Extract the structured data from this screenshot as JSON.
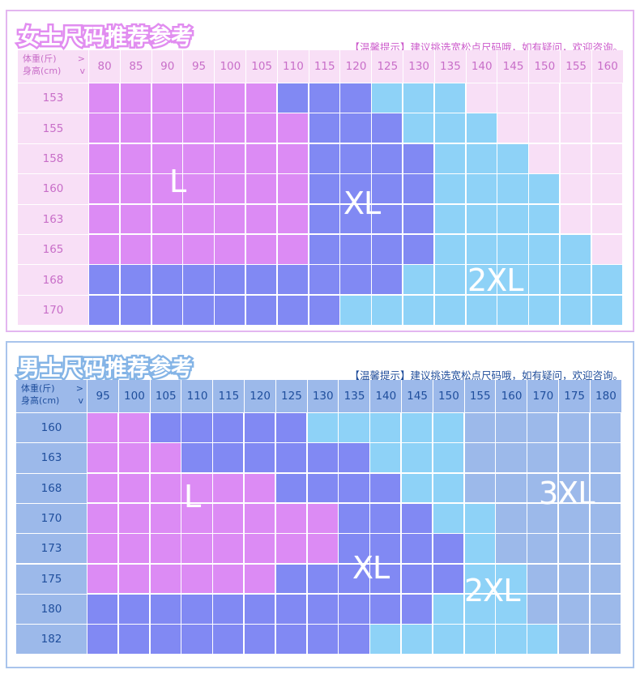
{
  "women": {
    "title": "女士尺码推荐参考",
    "tip": "【温馨提示】建议挑选宽松点尺码哦，如有疑问，欢迎咨询。",
    "corner_weight": "体重(斤)",
    "corner_weight_arrow": ">",
    "corner_height": "身高(cm)",
    "corner_height_arrow": "v",
    "weights": [
      "80",
      "85",
      "90",
      "95",
      "100",
      "105",
      "110",
      "115",
      "120",
      "125",
      "130",
      "135",
      "140",
      "145",
      "150",
      "155",
      "160"
    ],
    "heights": [
      "153",
      "155",
      "158",
      "160",
      "163",
      "165",
      "168",
      "170"
    ],
    "size_labels": [
      {
        "text": "L",
        "size": "L"
      },
      {
        "text": "XL",
        "size": "XL"
      },
      {
        "text": "2XL",
        "size": "2XL"
      }
    ],
    "grid": [
      [
        "L",
        "L",
        "L",
        "L",
        "L",
        "L",
        "XL",
        "XL",
        "XL",
        "2XL",
        "2XL",
        "2XL",
        "N",
        "N",
        "N",
        "N",
        "N"
      ],
      [
        "L",
        "L",
        "L",
        "L",
        "L",
        "L",
        "L",
        "XL",
        "XL",
        "XL",
        "2XL",
        "2XL",
        "2XL",
        "N",
        "N",
        "N",
        "N"
      ],
      [
        "L",
        "L",
        "L",
        "L",
        "L",
        "L",
        "L",
        "XL",
        "XL",
        "XL",
        "XL",
        "2XL",
        "2XL",
        "2XL",
        "N",
        "N",
        "N"
      ],
      [
        "L",
        "L",
        "L",
        "L",
        "L",
        "L",
        "L",
        "XL",
        "XL",
        "XL",
        "XL",
        "2XL",
        "2XL",
        "2XL",
        "2XL",
        "N",
        "N"
      ],
      [
        "L",
        "L",
        "L",
        "L",
        "L",
        "L",
        "L",
        "XL",
        "XL",
        "XL",
        "XL",
        "2XL",
        "2XL",
        "2XL",
        "2XL",
        "N",
        "N"
      ],
      [
        "L",
        "L",
        "L",
        "L",
        "L",
        "L",
        "L",
        "XL",
        "XL",
        "XL",
        "XL",
        "2XL",
        "2XL",
        "2XL",
        "2XL",
        "2XL",
        "N"
      ],
      [
        "XL",
        "XL",
        "XL",
        "XL",
        "XL",
        "XL",
        "XL",
        "XL",
        "XL",
        "XL",
        "2XL",
        "2XL",
        "2XL",
        "2XL",
        "2XL",
        "2XL",
        "2XL"
      ],
      [
        "XL",
        "XL",
        "XL",
        "XL",
        "XL",
        "XL",
        "XL",
        "XL",
        "2XL",
        "2XL",
        "2XL",
        "2XL",
        "2XL",
        "2XL",
        "2XL",
        "2XL",
        "2XL"
      ]
    ],
    "colors": {
      "L": "#dc8bf4",
      "XL": "#8189f3",
      "2XL": "#8ed2f7",
      "N": "#f8dff6"
    }
  },
  "men": {
    "title": "男士尺码推荐参考",
    "tip": "【温馨提示】建议挑选宽松点尺码哦，如有疑问，欢迎咨询。",
    "corner_weight": "体重(斤)",
    "corner_weight_arrow": ">",
    "corner_height": "身高(cm)",
    "corner_height_arrow": "v",
    "weights": [
      "95",
      "100",
      "105",
      "110",
      "115",
      "120",
      "125",
      "130",
      "135",
      "140",
      "145",
      "150",
      "155",
      "160",
      "170",
      "175",
      "180"
    ],
    "heights": [
      "160",
      "163",
      "168",
      "170",
      "173",
      "175",
      "180",
      "182"
    ],
    "size_labels": [
      {
        "text": "L",
        "size": "L"
      },
      {
        "text": "XL",
        "size": "XL"
      },
      {
        "text": "2XL",
        "size": "2XL"
      },
      {
        "text": "3XL",
        "size": "3XL"
      }
    ],
    "grid": [
      [
        "L",
        "L",
        "XL",
        "XL",
        "XL",
        "XL",
        "XL",
        "2XL",
        "2XL",
        "2XL",
        "2XL",
        "2XL",
        "3XL",
        "3XL",
        "3XL",
        "3XL",
        "3XL"
      ],
      [
        "L",
        "L",
        "L",
        "XL",
        "XL",
        "XL",
        "XL",
        "XL",
        "XL",
        "2XL",
        "2XL",
        "2XL",
        "3XL",
        "3XL",
        "3XL",
        "3XL",
        "3XL"
      ],
      [
        "L",
        "L",
        "L",
        "L",
        "L",
        "L",
        "XL",
        "XL",
        "XL",
        "XL",
        "2XL",
        "2XL",
        "3XL",
        "3XL",
        "3XL",
        "3XL",
        "3XL"
      ],
      [
        "L",
        "L",
        "L",
        "L",
        "L",
        "L",
        "L",
        "L",
        "XL",
        "XL",
        "XL",
        "2XL",
        "2XL",
        "3XL",
        "3XL",
        "3XL",
        "3XL"
      ],
      [
        "L",
        "L",
        "L",
        "L",
        "L",
        "L",
        "L",
        "L",
        "XL",
        "XL",
        "XL",
        "XL",
        "2XL",
        "3XL",
        "3XL",
        "3XL",
        "3XL"
      ],
      [
        "L",
        "L",
        "L",
        "L",
        "L",
        "L",
        "XL",
        "XL",
        "XL",
        "XL",
        "XL",
        "XL",
        "2XL",
        "2XL",
        "3XL",
        "3XL",
        "3XL"
      ],
      [
        "XL",
        "XL",
        "XL",
        "XL",
        "XL",
        "XL",
        "XL",
        "XL",
        "XL",
        "XL",
        "XL",
        "2XL",
        "2XL",
        "2XL",
        "3XL",
        "3XL",
        "3XL"
      ],
      [
        "XL",
        "XL",
        "XL",
        "XL",
        "XL",
        "XL",
        "XL",
        "XL",
        "XL",
        "2XL",
        "2XL",
        "2XL",
        "2XL",
        "2XL",
        "2XL",
        "3XL",
        "3XL"
      ]
    ],
    "colors": {
      "L": "#dc8bf4",
      "XL": "#8189f3",
      "2XL": "#8ed2f7",
      "3XL": "#9cb9ea"
    }
  }
}
